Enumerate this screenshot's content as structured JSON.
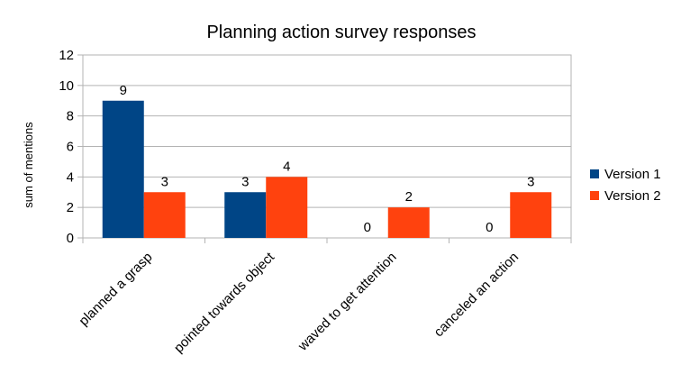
{
  "chart_data": {
    "type": "bar",
    "title": "Planning action survey responses",
    "ylabel": "sum of mentions",
    "xlabel": "",
    "ylim": [
      0,
      12
    ],
    "yticks": [
      0,
      2,
      4,
      6,
      8,
      10,
      12
    ],
    "grid": true,
    "legend_position": "right",
    "categories": [
      "planned a grasp",
      "pointed towards object",
      "waved to get attention",
      "canceled an action"
    ],
    "series": [
      {
        "name": "Version 1",
        "color": "#004586",
        "values": [
          9,
          3,
          0,
          0
        ]
      },
      {
        "name": "Version 2",
        "color": "#ff420e",
        "values": [
          3,
          4,
          2,
          3
        ]
      }
    ]
  }
}
